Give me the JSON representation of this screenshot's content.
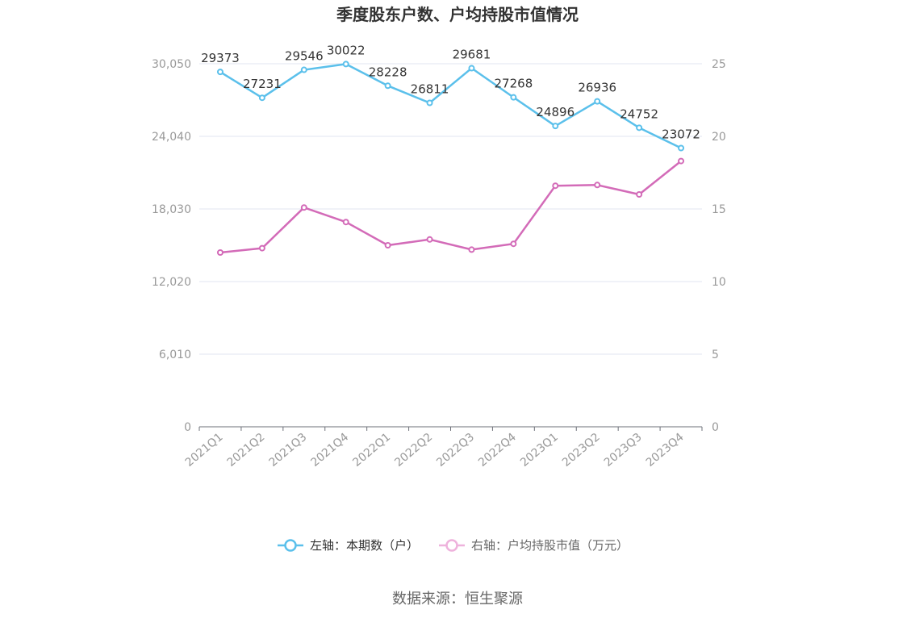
{
  "chart_data": {
    "type": "line",
    "title": "季度股东户数、户均持股市值情况",
    "categories": [
      "2021Q1",
      "2021Q2",
      "2021Q3",
      "2021Q4",
      "2022Q1",
      "2022Q2",
      "2022Q3",
      "2022Q4",
      "2023Q1",
      "2023Q2",
      "2023Q3",
      "2023Q4"
    ],
    "left_axis": {
      "min": 0,
      "max": 30050,
      "ticks": [
        0,
        6010,
        12020,
        18030,
        24040,
        30050
      ],
      "tick_labels": [
        "0",
        "6,010",
        "12,020",
        "18,030",
        "24,040",
        "30,050"
      ]
    },
    "right_axis": {
      "min": 0,
      "max": 25,
      "ticks": [
        0,
        5,
        10,
        15,
        20,
        25
      ],
      "tick_labels": [
        "0",
        "5",
        "10",
        "15",
        "20",
        "25"
      ]
    },
    "series": [
      {
        "name": "左轴：本期数（户）",
        "axis": "left",
        "color": "#5bc0eb",
        "values": [
          29373,
          27231,
          29546,
          30022,
          28228,
          26811,
          29681,
          27268,
          24896,
          26936,
          24752,
          23072
        ],
        "labels": [
          "29373",
          "27231",
          "29546",
          "30022",
          "28228",
          "26811",
          "29681",
          "27268",
          "24896",
          "26936",
          "24752",
          "23072"
        ]
      },
      {
        "name": "右轴：户均持股市值（万元）",
        "axis": "right",
        "color": "#d36bb8",
        "values": [
          12.0,
          12.3,
          15.1,
          14.1,
          12.5,
          12.9,
          12.2,
          12.6,
          16.6,
          16.65,
          16.0,
          18.3
        ]
      }
    ],
    "legend_position": "bottom",
    "grid": true
  },
  "source_text": "数据来源：恒生聚源"
}
